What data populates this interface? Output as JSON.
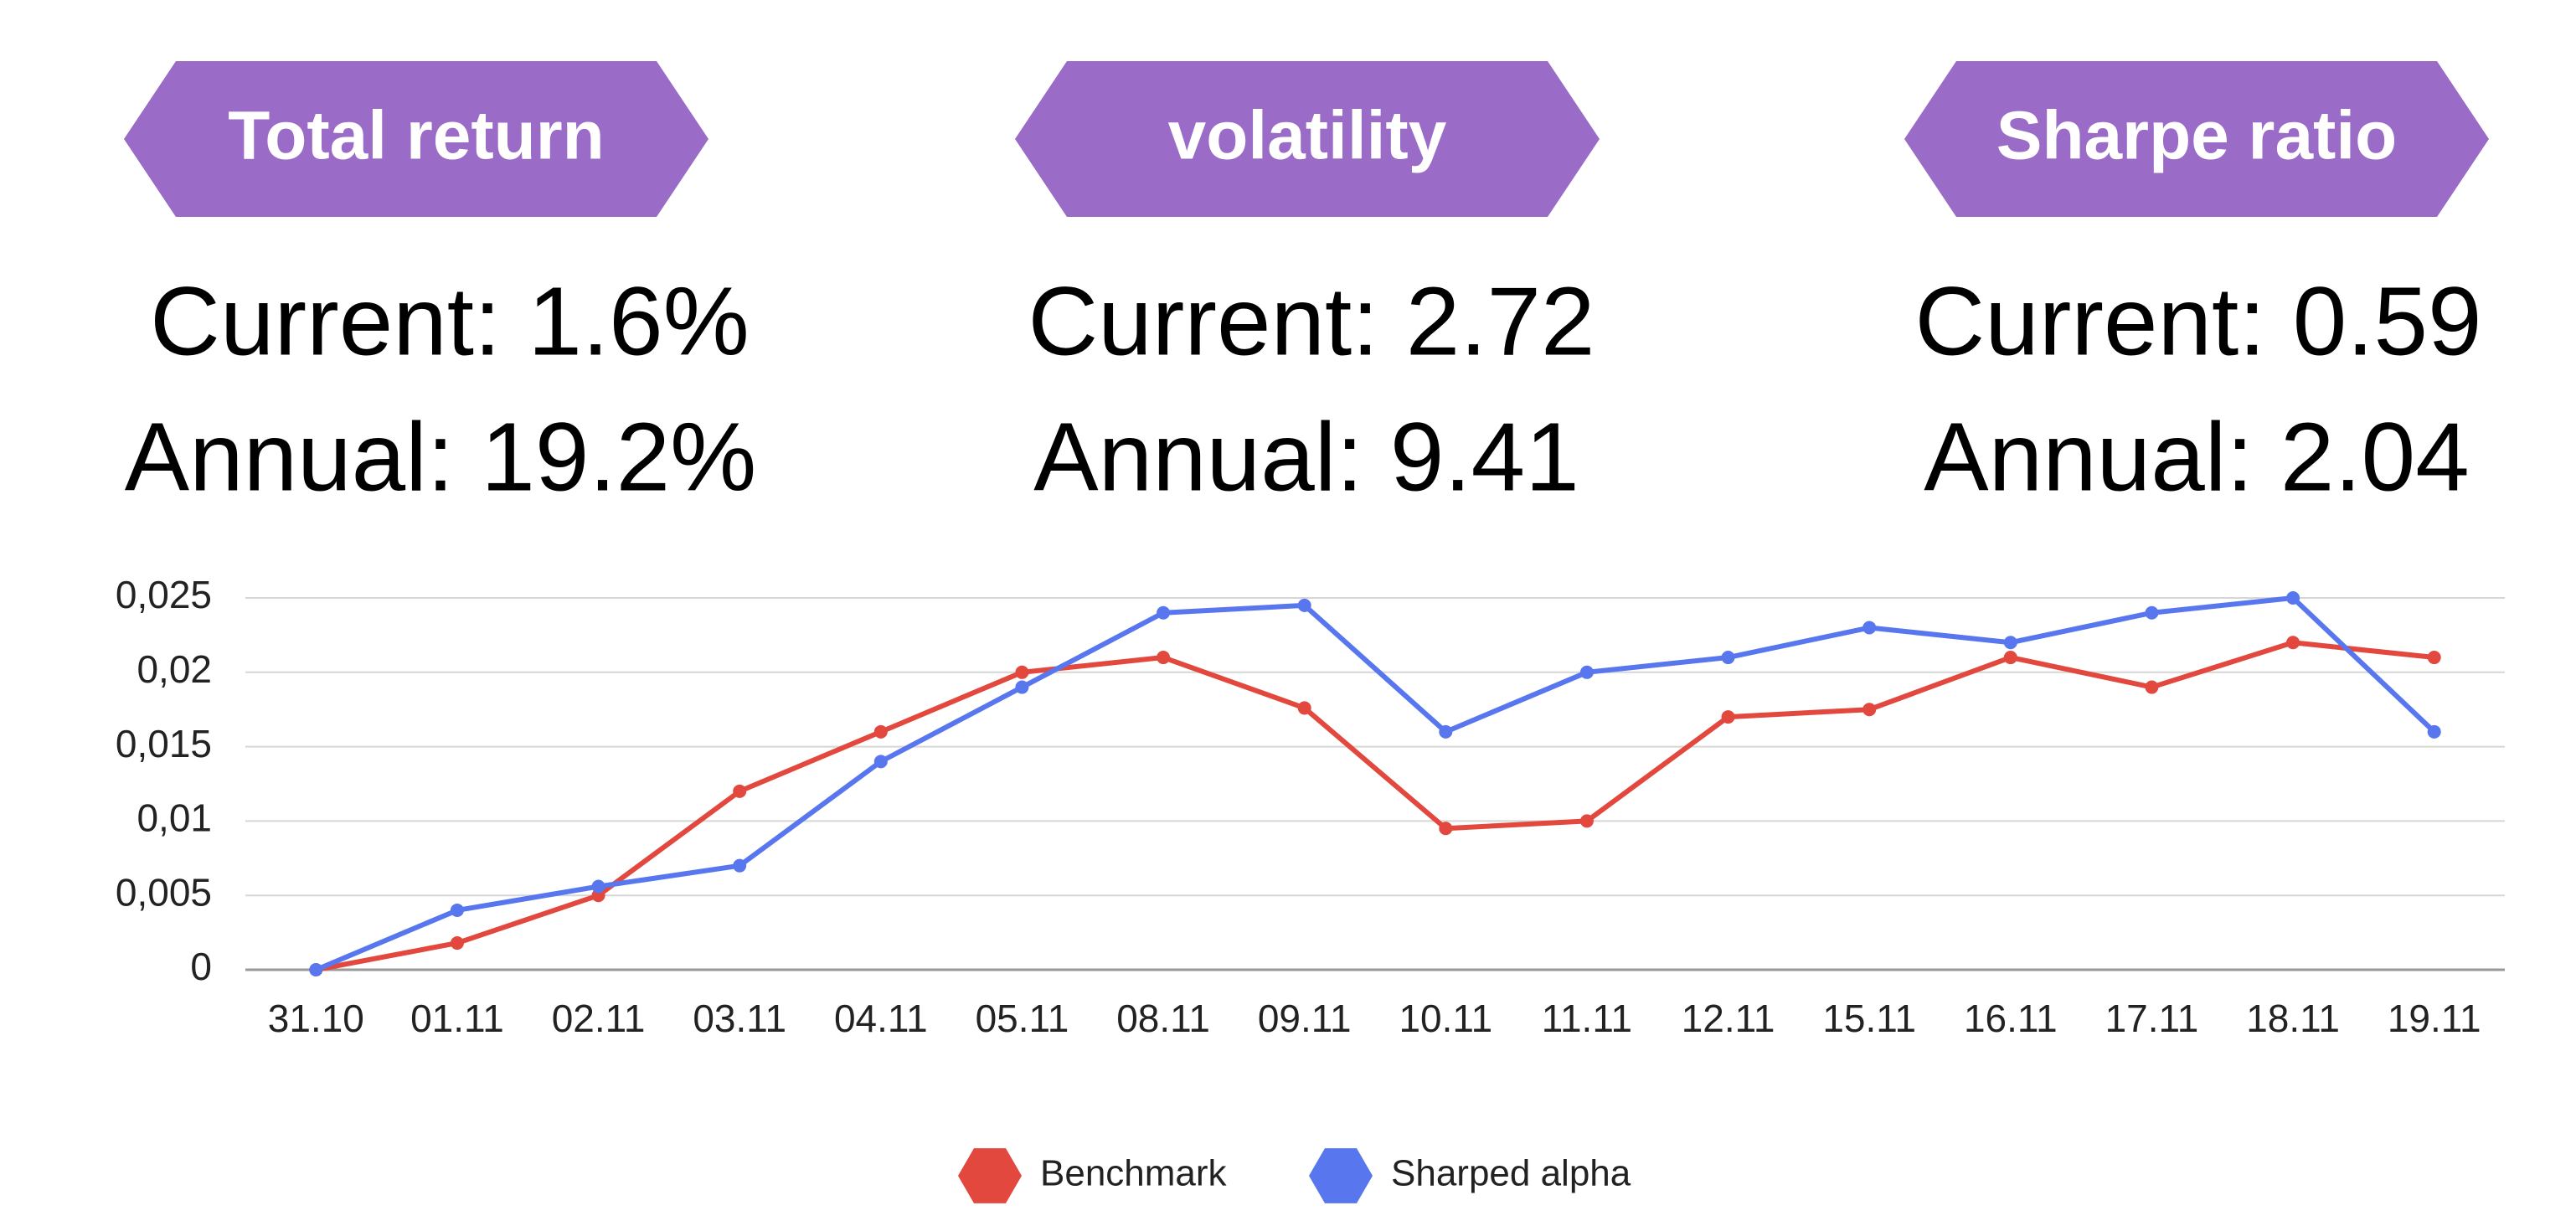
{
  "metrics": [
    {
      "title": "Total return",
      "current": "Current: 1.6%",
      "annual": "Annual: 19.2%"
    },
    {
      "title": "volatility",
      "current": "Current: 2.72",
      "annual": "Annual:  9.41"
    },
    {
      "title": "Sharpe ratio",
      "current": "Current: 0.59",
      "annual": "Annual: 2.04"
    }
  ],
  "chart_data": {
    "type": "line",
    "categories": [
      "31.10",
      "01.11",
      "02.11",
      "03.11",
      "04.11",
      "05.11",
      "08.11",
      "09.11",
      "10.11",
      "11.11",
      "12.11",
      "15.11",
      "16.11",
      "17.11",
      "18.11",
      "19.11"
    ],
    "series": [
      {
        "name": "Benchmark",
        "color": "#e2483e",
        "values": [
          0,
          0.0018,
          0.005,
          0.012,
          0.016,
          0.02,
          0.021,
          0.0176,
          0.0095,
          0.01,
          0.017,
          0.0175,
          0.021,
          0.019,
          0.022,
          0.021
        ]
      },
      {
        "name": "Sharped alpha",
        "color": "#5877ee",
        "values": [
          0,
          0.004,
          0.0056,
          0.007,
          0.014,
          0.019,
          0.024,
          0.0245,
          0.016,
          0.02,
          0.021,
          0.023,
          0.022,
          0.024,
          0.025,
          0.016
        ]
      }
    ],
    "ylim": [
      0,
      0.025
    ],
    "yticks": [
      0,
      {
        "value": 0.005,
        "label": "0,005"
      },
      {
        "value": 0.01,
        "label": "0,01"
      },
      {
        "value": 0.015,
        "label": "0,015"
      },
      {
        "value": 0.02,
        "label": "0,02"
      },
      {
        "value": 0.025,
        "label": "0,025"
      }
    ],
    "grid": true,
    "legend": "bottom"
  }
}
